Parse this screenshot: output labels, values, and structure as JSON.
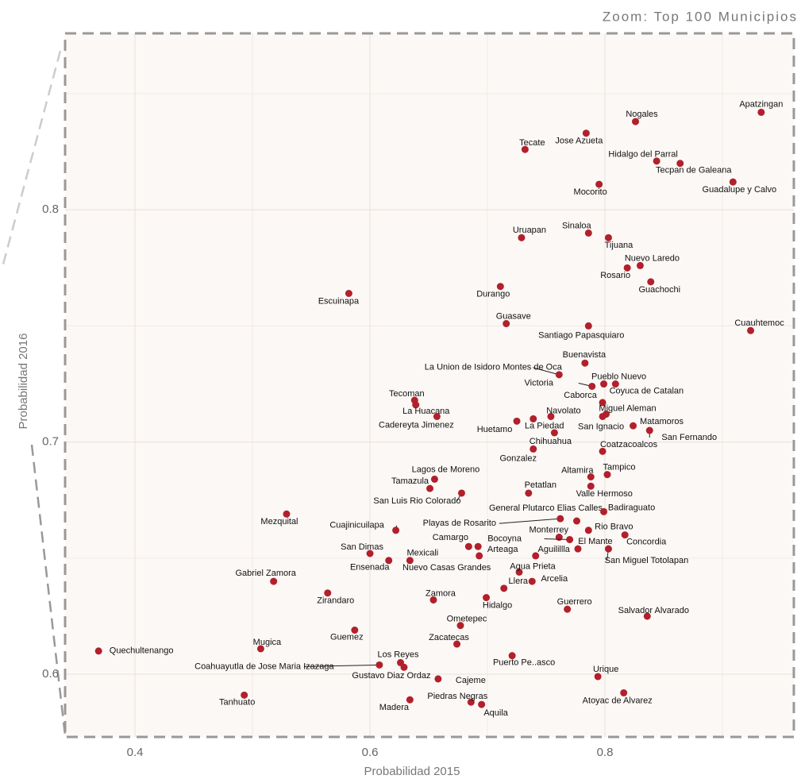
{
  "chart_data": {
    "type": "scatter",
    "title": "Zoom: Top 100 Municipios",
    "xlabel": "Probabilidad 2015",
    "ylabel": "Probabilidad 2016",
    "color": "#b2202c",
    "xlim": [
      0.3405,
      0.9608
    ],
    "ylim": [
      0.573,
      0.876
    ],
    "xticks": [
      0.4,
      0.6,
      0.8
    ],
    "yticks": [
      0.6,
      0.7,
      0.8
    ],
    "x_minor_ticks": [
      0.5,
      0.7,
      0.9
    ],
    "y_minor_ticks": [
      0.65,
      0.75,
      0.85
    ],
    "grid": true,
    "labels": [
      "Apatzingan",
      "Nogales",
      "Jose Azueta",
      "Tecate",
      "Hidalgo del Parral",
      "Tecpan de Galeana",
      "Guadalupe y Calvo",
      "Mocorito",
      "Uruapan",
      "Sinaloa",
      "Tijuana",
      "Nuevo Laredo",
      "Rosario",
      "Guachochi",
      "Escuinapa",
      "Durango",
      "Guasave",
      "Santiago Papasquiaro",
      "Cuauhtemoc",
      "Buenavista",
      "La Union de Isidoro Montes de Oca",
      "Pueblo Nuevo",
      "Victoria",
      "Coyuca de Catalan",
      "Caborca",
      "Tecoman",
      "La Huacana",
      "Miguel Aleman",
      "Navolato",
      "Cadereyta Jimenez",
      "La Piedad",
      "Huetamo",
      "San Ignacio",
      "Matamoros",
      "San Fernando",
      "Chihuahua",
      "Gonzalez",
      "Coatzacoalcos",
      "Altamira",
      "Tampico",
      "Valle Hermoso",
      "Lagos de Moreno",
      "Tamazula",
      "San Luis Rio Colorado",
      "Petatlan",
      "Mezquital",
      "General Plutarco Elias Calles",
      "Badiraguato",
      "Playas de Rosarito",
      "Cuajinicuilapa",
      "Rio Bravo",
      "Monterrey",
      "Bocoyna",
      "Concordia",
      "Camargo",
      "Arteaga",
      "San Dimas",
      "Ensenada",
      "Mexicali",
      "Nuevo Casas Grandes",
      "Aguilillla",
      "El Mante",
      "San Miguel Totolapan",
      "Gabriel Zamora",
      "Zirandaro",
      "Agua Prieta",
      "Arcelia",
      "Llera",
      "Zamora",
      "Hidalgo",
      "Guerrero",
      "Salvador Alvarado",
      "Ometepec",
      "Guemez",
      "Quechultenango",
      "Mugica",
      "Zacatecas",
      "Puerto Pe..asco",
      "Los Reyes",
      "Coahuayutla de Jose Maria Izazaga",
      "Gustavo Diaz Ordaz",
      "Cajeme",
      "Urique",
      "Tanhuato",
      "Atoyac de Alvarez",
      "Madera",
      "Piedras Negras",
      "Aquila"
    ],
    "x": [
      0.933,
      0.826,
      0.784,
      0.732,
      0.844,
      0.864,
      0.909,
      0.795,
      0.729,
      0.786,
      0.803,
      0.83,
      0.819,
      0.839,
      0.582,
      0.711,
      0.716,
      0.786,
      0.924,
      0.783,
      0.761,
      0.799,
      0.789,
      0.809,
      0.798,
      0.638,
      0.639,
      0.801,
      0.754,
      0.657,
      0.739,
      0.725,
      0.798,
      0.824,
      0.838,
      0.757,
      0.739,
      0.798,
      0.788,
      0.802,
      0.788,
      0.655,
      0.651,
      0.678,
      0.735,
      0.529,
      0.776,
      0.799,
      0.762,
      0.622,
      0.786,
      0.761,
      0.77,
      0.817,
      0.684,
      0.692,
      0.6,
      0.616,
      0.634,
      0.693,
      0.741,
      0.777,
      0.803,
      0.518,
      0.564,
      0.727,
      0.738,
      0.714,
      0.654,
      0.699,
      0.768,
      0.836,
      0.677,
      0.587,
      0.369,
      0.507,
      0.674,
      0.721,
      0.626,
      0.608,
      0.629,
      0.658,
      0.794,
      0.493,
      0.816,
      0.634,
      0.686,
      0.695
    ],
    "y": [
      0.842,
      0.838,
      0.833,
      0.826,
      0.821,
      0.82,
      0.812,
      0.811,
      0.788,
      0.79,
      0.788,
      0.776,
      0.775,
      0.769,
      0.764,
      0.767,
      0.751,
      0.75,
      0.748,
      0.734,
      0.729,
      0.725,
      0.724,
      0.725,
      0.717,
      0.718,
      0.716,
      0.712,
      0.711,
      0.711,
      0.71,
      0.709,
      0.711,
      0.707,
      0.705,
      0.704,
      0.697,
      0.696,
      0.685,
      0.686,
      0.681,
      0.684,
      0.68,
      0.678,
      0.678,
      0.669,
      0.666,
      0.67,
      0.667,
      0.662,
      0.662,
      0.659,
      0.658,
      0.66,
      0.655,
      0.655,
      0.652,
      0.649,
      0.649,
      0.651,
      0.651,
      0.654,
      0.654,
      0.64,
      0.635,
      0.644,
      0.64,
      0.637,
      0.632,
      0.633,
      0.628,
      0.625,
      0.621,
      0.619,
      0.61,
      0.611,
      0.613,
      0.608,
      0.605,
      0.604,
      0.603,
      0.598,
      0.599,
      0.591,
      0.592,
      0.589,
      0.588,
      0.587
    ]
  }
}
